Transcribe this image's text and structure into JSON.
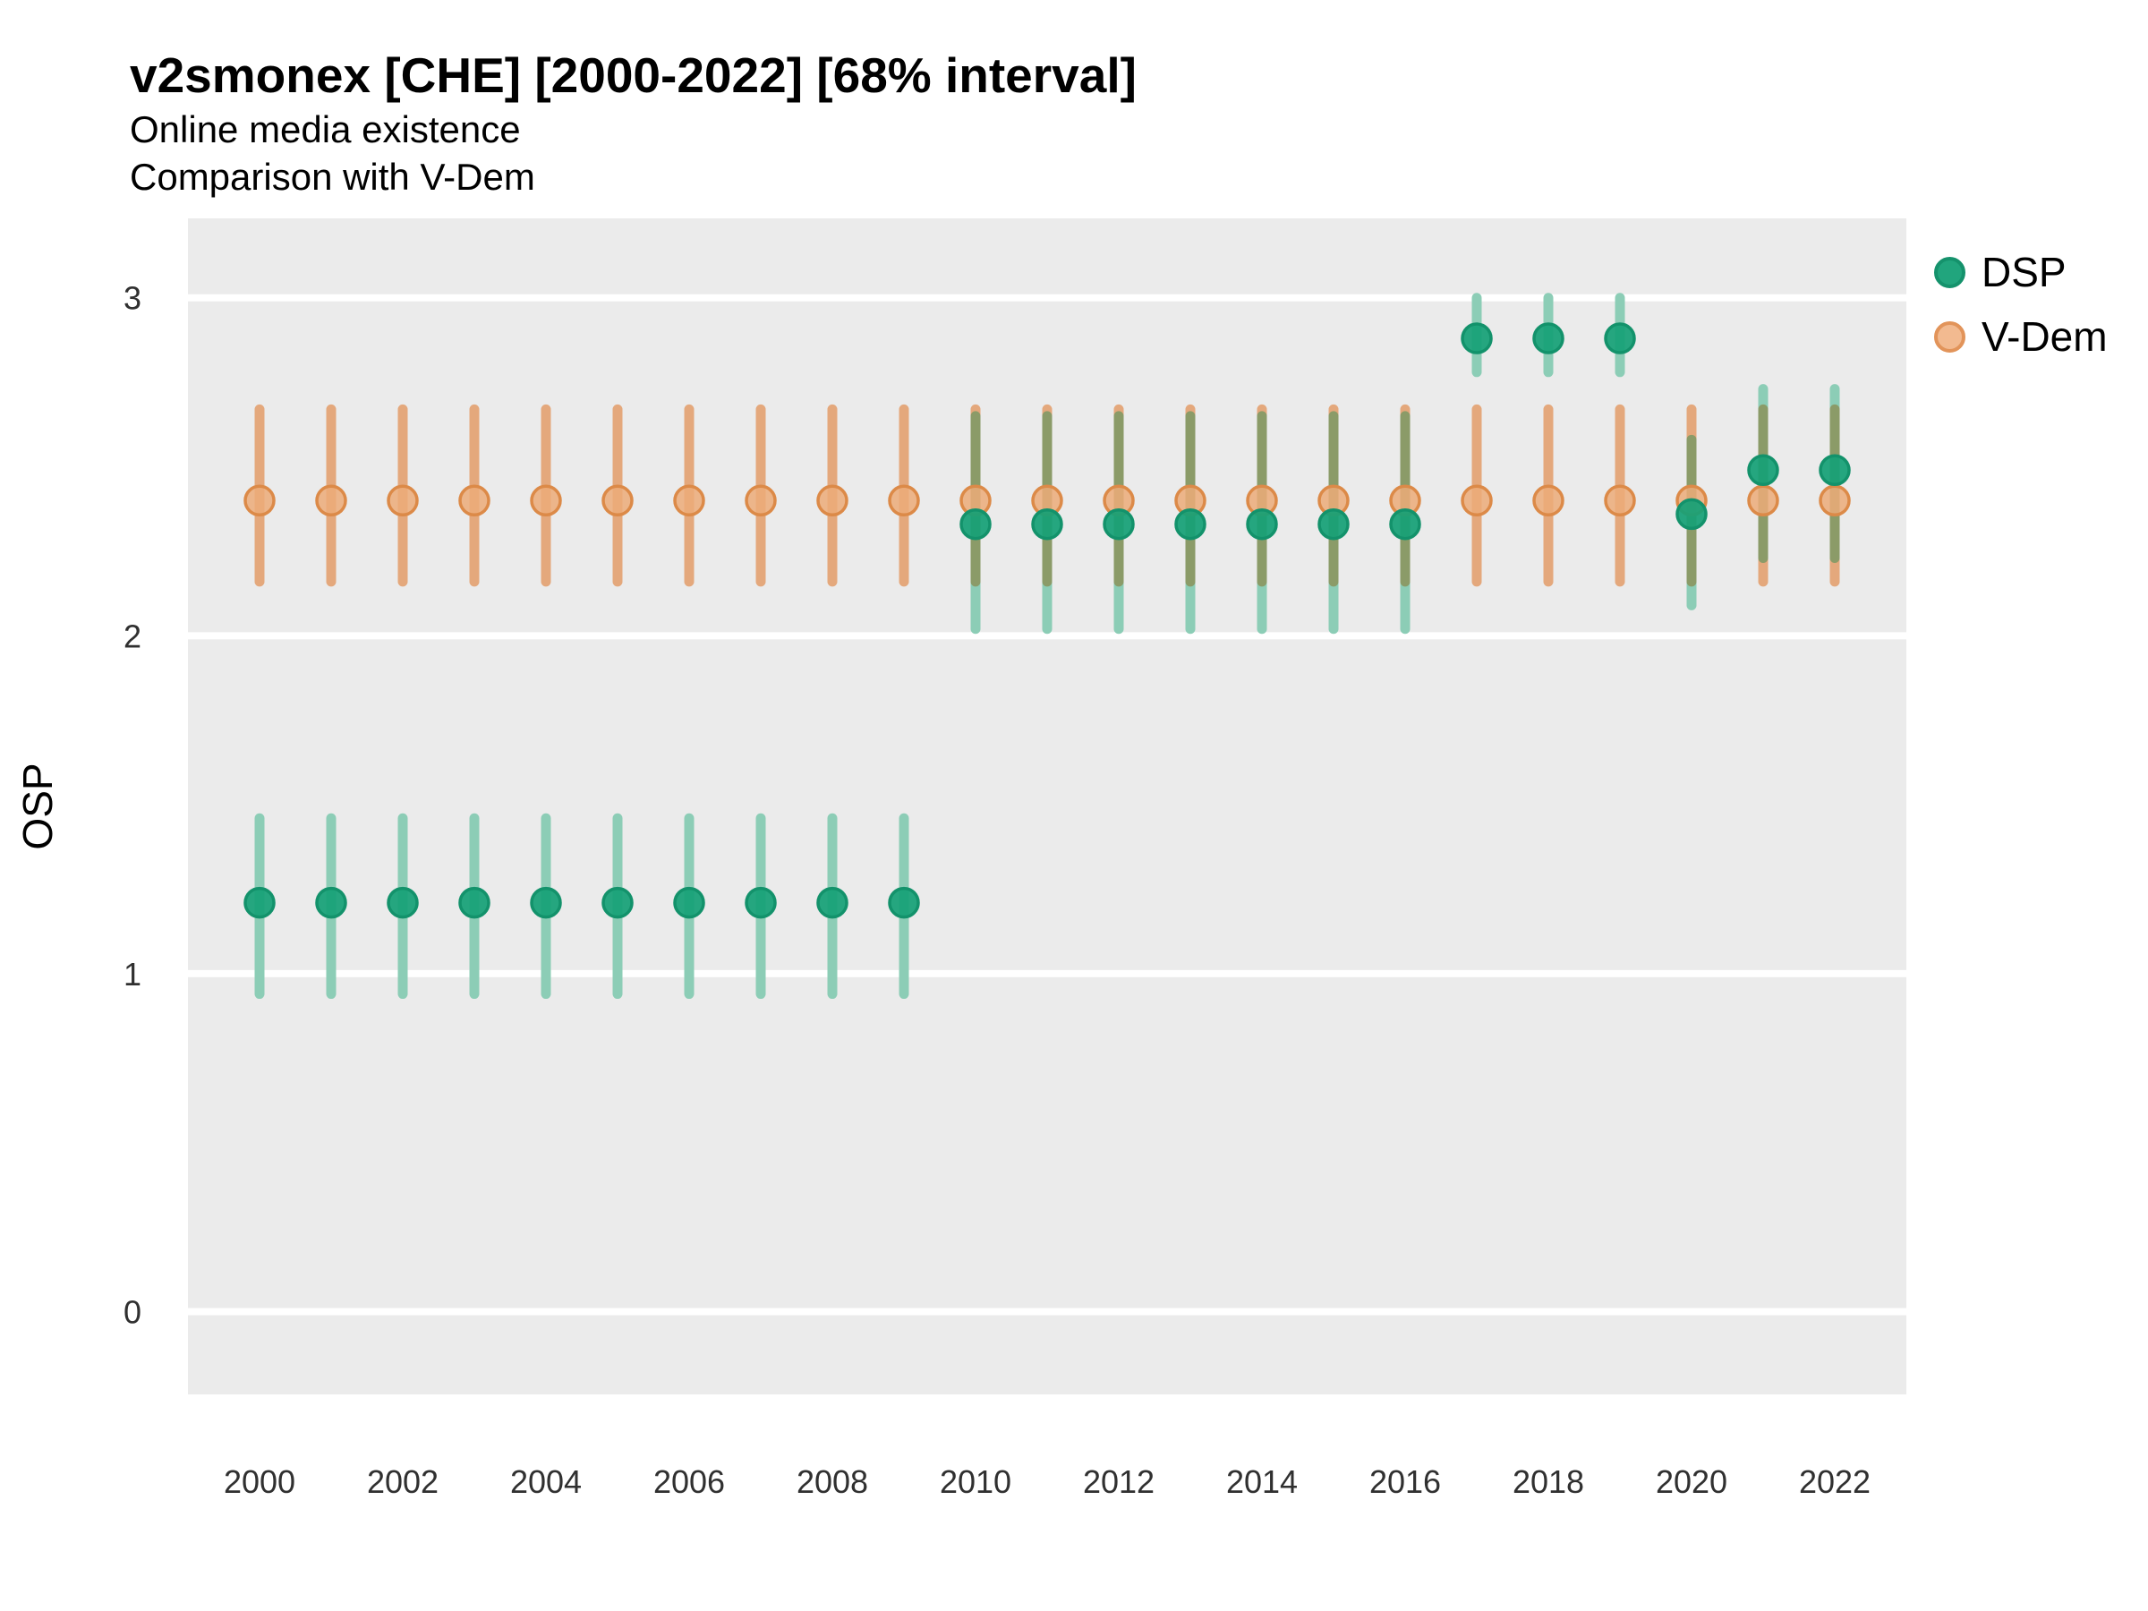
{
  "header": {
    "title": "v2smonex [CHE] [2000-2022] [68% interval]",
    "subtitle_line1": "Online media existence",
    "subtitle_line2": "Comparison with V-Dem"
  },
  "axes": {
    "y_title": "OSP",
    "y_ticks": [
      3,
      2,
      1,
      0
    ],
    "x_ticks": [
      2000,
      2002,
      2004,
      2006,
      2008,
      2010,
      2012,
      2014,
      2016,
      2018,
      2020,
      2022
    ]
  },
  "legend": {
    "items": [
      {
        "label": "DSP",
        "fill": "#21A57D",
        "stroke": "#15926C"
      },
      {
        "label": "V-Dem",
        "fill": "#F2BA90",
        "stroke": "#E2945A"
      }
    ]
  },
  "colors": {
    "panel_bg": "#EBEBEB",
    "grid": "#FFFFFF",
    "dsp_dot_fill": "#16A076",
    "dsp_dot_stroke": "#13926B",
    "dsp_bar": "#8CCDB6",
    "vdem_dot_fill": "#ECAC79",
    "vdem_dot_stroke": "#DC8A48",
    "vdem_bar": "#E4A87C",
    "overlap_bar": "#8B9B68",
    "axis_text": "#303030",
    "title_text": "#000000"
  },
  "chart_data": {
    "type": "scatter",
    "title": "v2smonex [CHE] [2000-2022] [68% interval]",
    "subtitle": [
      "Online media existence",
      "Comparison with V-Dem"
    ],
    "xlabel": "",
    "ylabel": "OSP",
    "interval": "68%",
    "xlim": [
      1999,
      2023
    ],
    "ylim": [
      -0.245,
      3.235
    ],
    "grid": "horizontal-major-only",
    "legend_position": "right",
    "series": [
      {
        "name": "DSP",
        "points": [
          {
            "year": 2000,
            "y": 1.21,
            "lo": 0.94,
            "hi": 1.46
          },
          {
            "year": 2001,
            "y": 1.21,
            "lo": 0.94,
            "hi": 1.46
          },
          {
            "year": 2002,
            "y": 1.21,
            "lo": 0.94,
            "hi": 1.46
          },
          {
            "year": 2003,
            "y": 1.21,
            "lo": 0.94,
            "hi": 1.46
          },
          {
            "year": 2004,
            "y": 1.21,
            "lo": 0.94,
            "hi": 1.46
          },
          {
            "year": 2005,
            "y": 1.21,
            "lo": 0.94,
            "hi": 1.46
          },
          {
            "year": 2006,
            "y": 1.21,
            "lo": 0.94,
            "hi": 1.46
          },
          {
            "year": 2007,
            "y": 1.21,
            "lo": 0.94,
            "hi": 1.46
          },
          {
            "year": 2008,
            "y": 1.21,
            "lo": 0.94,
            "hi": 1.46
          },
          {
            "year": 2009,
            "y": 1.21,
            "lo": 0.94,
            "hi": 1.46
          },
          {
            "year": 2010,
            "y": 2.33,
            "lo": 2.02,
            "hi": 2.65
          },
          {
            "year": 2011,
            "y": 2.33,
            "lo": 2.02,
            "hi": 2.65
          },
          {
            "year": 2012,
            "y": 2.33,
            "lo": 2.02,
            "hi": 2.65
          },
          {
            "year": 2013,
            "y": 2.33,
            "lo": 2.02,
            "hi": 2.65
          },
          {
            "year": 2014,
            "y": 2.33,
            "lo": 2.02,
            "hi": 2.65
          },
          {
            "year": 2015,
            "y": 2.33,
            "lo": 2.02,
            "hi": 2.65
          },
          {
            "year": 2016,
            "y": 2.33,
            "lo": 2.02,
            "hi": 2.65
          },
          {
            "year": 2017,
            "y": 2.88,
            "lo": 2.78,
            "hi": 3.0
          },
          {
            "year": 2018,
            "y": 2.88,
            "lo": 2.78,
            "hi": 3.0
          },
          {
            "year": 2019,
            "y": 2.88,
            "lo": 2.78,
            "hi": 3.0
          },
          {
            "year": 2020,
            "y": 2.36,
            "lo": 2.09,
            "hi": 2.58
          },
          {
            "year": 2021,
            "y": 2.49,
            "lo": 2.23,
            "hi": 2.73
          },
          {
            "year": 2022,
            "y": 2.49,
            "lo": 2.23,
            "hi": 2.73
          }
        ]
      },
      {
        "name": "V-Dem",
        "points": [
          {
            "year": 2000,
            "y": 2.4,
            "lo": 2.16,
            "hi": 2.67
          },
          {
            "year": 2001,
            "y": 2.4,
            "lo": 2.16,
            "hi": 2.67
          },
          {
            "year": 2002,
            "y": 2.4,
            "lo": 2.16,
            "hi": 2.67
          },
          {
            "year": 2003,
            "y": 2.4,
            "lo": 2.16,
            "hi": 2.67
          },
          {
            "year": 2004,
            "y": 2.4,
            "lo": 2.16,
            "hi": 2.67
          },
          {
            "year": 2005,
            "y": 2.4,
            "lo": 2.16,
            "hi": 2.67
          },
          {
            "year": 2006,
            "y": 2.4,
            "lo": 2.16,
            "hi": 2.67
          },
          {
            "year": 2007,
            "y": 2.4,
            "lo": 2.16,
            "hi": 2.67
          },
          {
            "year": 2008,
            "y": 2.4,
            "lo": 2.16,
            "hi": 2.67
          },
          {
            "year": 2009,
            "y": 2.4,
            "lo": 2.16,
            "hi": 2.67
          },
          {
            "year": 2010,
            "y": 2.4,
            "lo": 2.16,
            "hi": 2.67
          },
          {
            "year": 2011,
            "y": 2.4,
            "lo": 2.16,
            "hi": 2.67
          },
          {
            "year": 2012,
            "y": 2.4,
            "lo": 2.16,
            "hi": 2.67
          },
          {
            "year": 2013,
            "y": 2.4,
            "lo": 2.16,
            "hi": 2.67
          },
          {
            "year": 2014,
            "y": 2.4,
            "lo": 2.16,
            "hi": 2.67
          },
          {
            "year": 2015,
            "y": 2.4,
            "lo": 2.16,
            "hi": 2.67
          },
          {
            "year": 2016,
            "y": 2.4,
            "lo": 2.16,
            "hi": 2.67
          },
          {
            "year": 2017,
            "y": 2.4,
            "lo": 2.16,
            "hi": 2.67
          },
          {
            "year": 2018,
            "y": 2.4,
            "lo": 2.16,
            "hi": 2.67
          },
          {
            "year": 2019,
            "y": 2.4,
            "lo": 2.16,
            "hi": 2.67
          },
          {
            "year": 2020,
            "y": 2.4,
            "lo": 2.16,
            "hi": 2.67
          },
          {
            "year": 2021,
            "y": 2.4,
            "lo": 2.16,
            "hi": 2.67
          },
          {
            "year": 2022,
            "y": 2.4,
            "lo": 2.16,
            "hi": 2.67
          }
        ]
      }
    ]
  }
}
